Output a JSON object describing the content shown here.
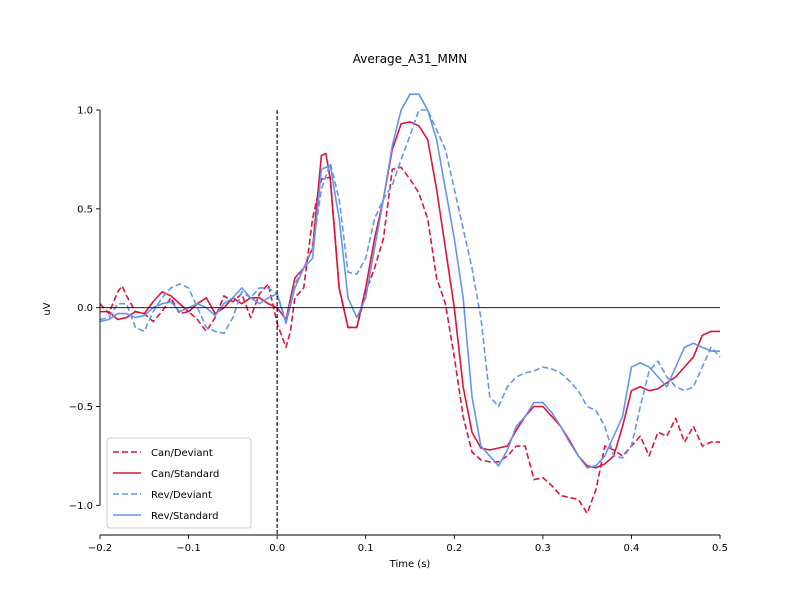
{
  "chart_data": {
    "type": "line",
    "title": "Average_A31_MMN",
    "xlabel": "Time (s)",
    "ylabel": "uV",
    "xlim": [
      -0.2,
      0.5
    ],
    "ylim": [
      -1.15,
      1.0
    ],
    "x_ticks": [
      -0.2,
      -0.1,
      0.0,
      0.1,
      0.2,
      0.3,
      0.4,
      0.5
    ],
    "x_tick_labels": [
      "−0.2",
      "−0.1",
      "0.0",
      "0.1",
      "0.2",
      "0.3",
      "0.4",
      "0.5"
    ],
    "y_ticks": [
      -1.0,
      -0.5,
      0.0,
      0.5,
      1.0
    ],
    "y_tick_labels": [
      "−1.0",
      "−0.5",
      "0.0",
      "0.5",
      "1.0"
    ],
    "grid": false,
    "legend_position": "lower-left",
    "zero_line": true,
    "stimulus_onset_line": 0.0,
    "series": [
      {
        "name": "Can/Deviant",
        "color": "#dc143c",
        "dashed": true,
        "x": [
          -0.2,
          -0.19,
          -0.18,
          -0.175,
          -0.17,
          -0.16,
          -0.15,
          -0.14,
          -0.13,
          -0.12,
          -0.11,
          -0.1,
          -0.09,
          -0.08,
          -0.07,
          -0.06,
          -0.05,
          -0.04,
          -0.03,
          -0.02,
          -0.01,
          0.0,
          0.01,
          0.015,
          0.02,
          0.03,
          0.04,
          0.05,
          0.06,
          0.07,
          0.08,
          0.09,
          0.1,
          0.11,
          0.12,
          0.13,
          0.14,
          0.15,
          0.16,
          0.17,
          0.18,
          0.19,
          0.2,
          0.21,
          0.22,
          0.23,
          0.24,
          0.25,
          0.26,
          0.27,
          0.28,
          0.29,
          0.3,
          0.31,
          0.32,
          0.33,
          0.34,
          0.35,
          0.36,
          0.37,
          0.38,
          0.39,
          0.4,
          0.41,
          0.42,
          0.43,
          0.44,
          0.45,
          0.46,
          0.47,
          0.48,
          0.49,
          0.5
        ],
        "y": [
          0.02,
          -0.03,
          0.08,
          0.11,
          0.06,
          -0.02,
          -0.03,
          -0.07,
          -0.02,
          0.05,
          -0.03,
          -0.02,
          -0.06,
          -0.12,
          -0.05,
          0.06,
          0.03,
          0.07,
          -0.05,
          0.07,
          0.12,
          -0.08,
          -0.2,
          -0.12,
          0.05,
          0.1,
          0.45,
          0.65,
          0.66,
          0.1,
          -0.1,
          -0.1,
          0.08,
          0.2,
          0.35,
          0.7,
          0.71,
          0.65,
          0.58,
          0.45,
          0.15,
          0.02,
          -0.25,
          -0.55,
          -0.73,
          -0.77,
          -0.78,
          -0.78,
          -0.75,
          -0.7,
          -0.7,
          -0.87,
          -0.86,
          -0.9,
          -0.95,
          -0.96,
          -0.97,
          -1.04,
          -0.92,
          -0.7,
          -0.72,
          -0.75,
          -0.7,
          -0.65,
          -0.75,
          -0.63,
          -0.65,
          -0.56,
          -0.68,
          -0.6,
          -0.7,
          -0.68,
          -0.68
        ]
      },
      {
        "name": "Can/Standard",
        "color": "#dc143c",
        "dashed": false,
        "x": [
          -0.2,
          -0.19,
          -0.18,
          -0.17,
          -0.16,
          -0.15,
          -0.14,
          -0.13,
          -0.12,
          -0.11,
          -0.1,
          -0.09,
          -0.08,
          -0.07,
          -0.06,
          -0.05,
          -0.04,
          -0.03,
          -0.02,
          -0.01,
          0.0,
          0.01,
          0.02,
          0.03,
          0.04,
          0.05,
          0.055,
          0.06,
          0.07,
          0.08,
          0.09,
          0.1,
          0.11,
          0.12,
          0.13,
          0.14,
          0.15,
          0.16,
          0.17,
          0.18,
          0.19,
          0.2,
          0.21,
          0.22,
          0.23,
          0.24,
          0.25,
          0.26,
          0.27,
          0.28,
          0.29,
          0.3,
          0.31,
          0.32,
          0.33,
          0.34,
          0.35,
          0.36,
          0.37,
          0.38,
          0.39,
          0.4,
          0.41,
          0.42,
          0.43,
          0.44,
          0.45,
          0.46,
          0.47,
          0.48,
          0.49,
          0.5
        ],
        "y": [
          -0.02,
          -0.02,
          -0.06,
          -0.05,
          -0.02,
          -0.03,
          0.03,
          0.08,
          0.06,
          0.02,
          -0.02,
          0.02,
          0.05,
          -0.03,
          0.0,
          0.05,
          0.02,
          0.05,
          0.05,
          0.02,
          0.0,
          -0.06,
          0.15,
          0.2,
          0.3,
          0.77,
          0.78,
          0.65,
          0.1,
          -0.1,
          -0.1,
          0.1,
          0.35,
          0.55,
          0.8,
          0.93,
          0.94,
          0.92,
          0.85,
          0.6,
          0.3,
          0.0,
          -0.4,
          -0.63,
          -0.71,
          -0.72,
          -0.71,
          -0.7,
          -0.62,
          -0.55,
          -0.5,
          -0.5,
          -0.55,
          -0.6,
          -0.67,
          -0.75,
          -0.8,
          -0.81,
          -0.79,
          -0.75,
          -0.6,
          -0.42,
          -0.4,
          -0.42,
          -0.41,
          -0.38,
          -0.35,
          -0.3,
          -0.25,
          -0.14,
          -0.12,
          -0.12
        ]
      },
      {
        "name": "Rev/Deviant",
        "color": "#6495ed",
        "dashed": true,
        "x": [
          -0.2,
          -0.19,
          -0.18,
          -0.17,
          -0.16,
          -0.15,
          -0.14,
          -0.13,
          -0.12,
          -0.11,
          -0.1,
          -0.09,
          -0.08,
          -0.07,
          -0.06,
          -0.05,
          -0.04,
          -0.03,
          -0.02,
          -0.01,
          0.0,
          0.01,
          0.02,
          0.03,
          0.04,
          0.05,
          0.06,
          0.07,
          0.08,
          0.09,
          0.1,
          0.11,
          0.12,
          0.13,
          0.14,
          0.15,
          0.16,
          0.17,
          0.18,
          0.19,
          0.2,
          0.21,
          0.22,
          0.23,
          0.24,
          0.25,
          0.26,
          0.27,
          0.28,
          0.29,
          0.3,
          0.31,
          0.32,
          0.33,
          0.34,
          0.35,
          0.36,
          0.37,
          0.38,
          0.39,
          0.4,
          0.41,
          0.42,
          0.43,
          0.44,
          0.45,
          0.46,
          0.47,
          0.48,
          0.49,
          0.5
        ],
        "y": [
          -0.06,
          -0.05,
          0.02,
          0.02,
          -0.1,
          -0.12,
          -0.02,
          0.05,
          0.1,
          0.12,
          0.1,
          0.0,
          -0.1,
          -0.12,
          -0.13,
          -0.05,
          0.08,
          0.05,
          0.1,
          0.1,
          0.07,
          -0.07,
          0.12,
          0.2,
          0.3,
          0.6,
          0.73,
          0.55,
          0.18,
          0.17,
          0.25,
          0.45,
          0.55,
          0.62,
          0.75,
          0.87,
          1.0,
          1.0,
          0.9,
          0.8,
          0.6,
          0.4,
          0.2,
          -0.05,
          -0.45,
          -0.5,
          -0.4,
          -0.35,
          -0.33,
          -0.32,
          -0.3,
          -0.31,
          -0.33,
          -0.37,
          -0.42,
          -0.5,
          -0.52,
          -0.6,
          -0.75,
          -0.76,
          -0.7,
          -0.5,
          -0.32,
          -0.27,
          -0.35,
          -0.4,
          -0.42,
          -0.4,
          -0.3,
          -0.2,
          -0.25
        ]
      },
      {
        "name": "Rev/Standard",
        "color": "#6495ed",
        "dashed": false,
        "x": [
          -0.2,
          -0.19,
          -0.18,
          -0.17,
          -0.16,
          -0.15,
          -0.14,
          -0.13,
          -0.12,
          -0.11,
          -0.1,
          -0.09,
          -0.08,
          -0.07,
          -0.06,
          -0.05,
          -0.04,
          -0.03,
          -0.02,
          -0.01,
          0.0,
          0.01,
          0.02,
          0.03,
          0.04,
          0.05,
          0.06,
          0.07,
          0.08,
          0.09,
          0.1,
          0.11,
          0.12,
          0.13,
          0.14,
          0.15,
          0.16,
          0.17,
          0.18,
          0.19,
          0.2,
          0.21,
          0.22,
          0.23,
          0.24,
          0.25,
          0.26,
          0.27,
          0.28,
          0.29,
          0.3,
          0.31,
          0.32,
          0.33,
          0.34,
          0.35,
          0.36,
          0.37,
          0.38,
          0.39,
          0.4,
          0.41,
          0.42,
          0.43,
          0.44,
          0.45,
          0.46,
          0.47,
          0.48,
          0.49,
          0.5
        ],
        "y": [
          -0.07,
          -0.06,
          -0.03,
          -0.03,
          -0.05,
          -0.04,
          0.0,
          0.02,
          0.03,
          -0.02,
          0.0,
          0.02,
          0.0,
          -0.04,
          0.02,
          0.05,
          0.1,
          0.05,
          0.02,
          0.05,
          0.07,
          -0.08,
          0.1,
          0.2,
          0.25,
          0.7,
          0.72,
          0.45,
          0.05,
          -0.05,
          0.05,
          0.3,
          0.55,
          0.82,
          1.0,
          1.08,
          1.08,
          1.0,
          0.85,
          0.6,
          0.35,
          0.05,
          -0.45,
          -0.7,
          -0.75,
          -0.8,
          -0.72,
          -0.6,
          -0.55,
          -0.48,
          -0.48,
          -0.53,
          -0.6,
          -0.68,
          -0.75,
          -0.81,
          -0.8,
          -0.75,
          -0.65,
          -0.55,
          -0.3,
          -0.28,
          -0.3,
          -0.35,
          -0.4,
          -0.3,
          -0.2,
          -0.18,
          -0.2,
          -0.22,
          -0.22
        ]
      }
    ]
  }
}
